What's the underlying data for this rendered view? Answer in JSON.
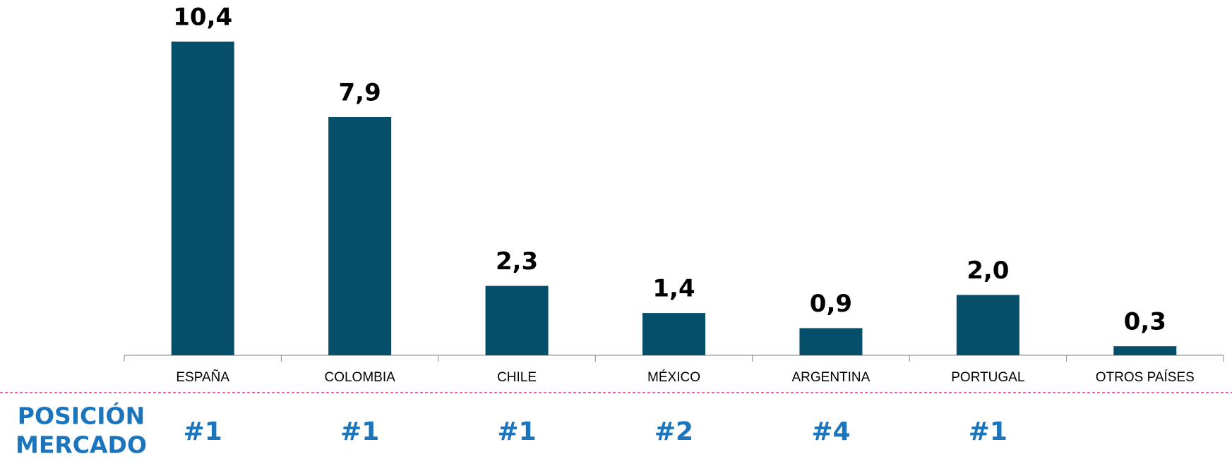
{
  "chart_data": {
    "type": "bar",
    "categories": [
      "ESPAÑA",
      "COLOMBIA",
      "CHILE",
      "MÉXICO",
      "ARGENTINA",
      "PORTUGAL",
      "OTROS PAÍSES"
    ],
    "values": [
      10.4,
      7.9,
      2.3,
      1.4,
      0.9,
      2.0,
      0.3
    ],
    "value_labels": [
      "10,4",
      "7,9",
      "2,3",
      "1,4",
      "0,9",
      "2,0",
      "0,3"
    ],
    "color": "#054f6b",
    "market_position": {
      "label": [
        "POSICIÓN",
        "MERCADO"
      ],
      "values": [
        "#1",
        "#1",
        "#1",
        "#2",
        "#4",
        "#1",
        null
      ]
    }
  }
}
